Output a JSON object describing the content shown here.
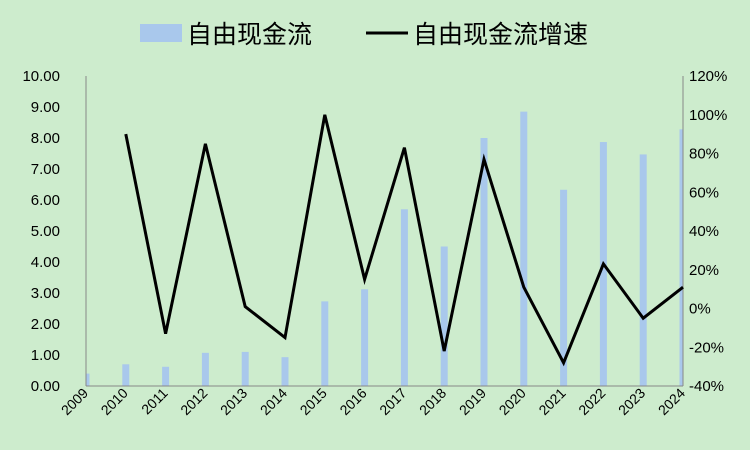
{
  "chart_data": {
    "type": "bar+line",
    "categories": [
      "2009",
      "2010",
      "2011",
      "2012",
      "2013",
      "2014",
      "2015",
      "2016",
      "2017",
      "2018",
      "2019",
      "2020",
      "2021",
      "2022",
      "2023",
      "2024"
    ],
    "series": [
      {
        "name": "自由现金流",
        "type": "bar",
        "axis": "left",
        "color": "#a9c8ec",
        "values": [
          0.4,
          0.7,
          0.62,
          1.07,
          1.1,
          0.93,
          2.73,
          3.12,
          5.7,
          4.5,
          8.0,
          8.85,
          6.33,
          7.87,
          7.47,
          8.28
        ]
      },
      {
        "name": "自由现金流增速",
        "type": "line",
        "axis": "right",
        "color": "#000000",
        "values": [
          null,
          0.9,
          -0.13,
          0.85,
          0.01,
          -0.15,
          1.0,
          0.15,
          0.83,
          -0.22,
          0.77,
          0.11,
          -0.28,
          0.23,
          -0.05,
          0.11
        ]
      }
    ],
    "y_left": {
      "ylim": [
        0,
        10
      ],
      "ticks": [
        "0.00",
        "1.00",
        "2.00",
        "3.00",
        "4.00",
        "5.00",
        "6.00",
        "7.00",
        "8.00",
        "9.00",
        "10.00"
      ]
    },
    "y_right": {
      "ylim": [
        -0.4,
        1.2
      ],
      "ticks": [
        "-40%",
        "-20%",
        "0%",
        "20%",
        "40%",
        "60%",
        "80%",
        "100%",
        "120%"
      ]
    },
    "legend": "top-center",
    "grid": false
  }
}
